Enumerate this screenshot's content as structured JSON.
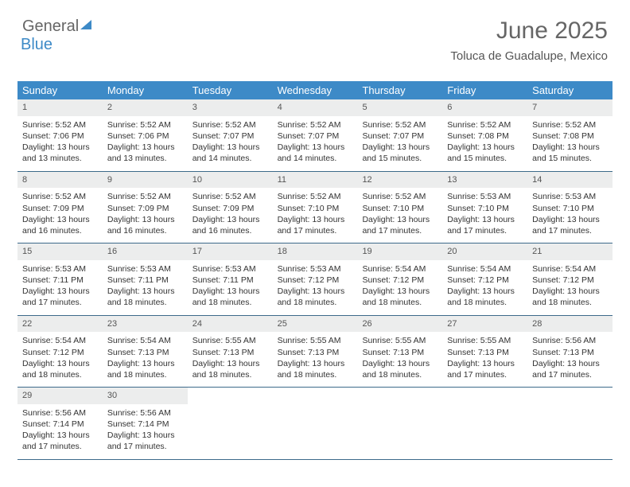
{
  "logo": {
    "general": "General",
    "blue": "Blue"
  },
  "title": "June 2025",
  "location": "Toluca de Guadalupe, Mexico",
  "colors": {
    "header_bg": "#3d8ac7",
    "header_fg": "#ffffff",
    "daynum_bg": "#eceded",
    "rule": "#3d6a8a",
    "text": "#333333",
    "title": "#666666"
  },
  "day_headers": [
    "Sunday",
    "Monday",
    "Tuesday",
    "Wednesday",
    "Thursday",
    "Friday",
    "Saturday"
  ],
  "weeks": [
    [
      {
        "n": "1",
        "sr": "Sunrise: 5:52 AM",
        "ss": "Sunset: 7:06 PM",
        "d1": "Daylight: 13 hours",
        "d2": "and 13 minutes."
      },
      {
        "n": "2",
        "sr": "Sunrise: 5:52 AM",
        "ss": "Sunset: 7:06 PM",
        "d1": "Daylight: 13 hours",
        "d2": "and 13 minutes."
      },
      {
        "n": "3",
        "sr": "Sunrise: 5:52 AM",
        "ss": "Sunset: 7:07 PM",
        "d1": "Daylight: 13 hours",
        "d2": "and 14 minutes."
      },
      {
        "n": "4",
        "sr": "Sunrise: 5:52 AM",
        "ss": "Sunset: 7:07 PM",
        "d1": "Daylight: 13 hours",
        "d2": "and 14 minutes."
      },
      {
        "n": "5",
        "sr": "Sunrise: 5:52 AM",
        "ss": "Sunset: 7:07 PM",
        "d1": "Daylight: 13 hours",
        "d2": "and 15 minutes."
      },
      {
        "n": "6",
        "sr": "Sunrise: 5:52 AM",
        "ss": "Sunset: 7:08 PM",
        "d1": "Daylight: 13 hours",
        "d2": "and 15 minutes."
      },
      {
        "n": "7",
        "sr": "Sunrise: 5:52 AM",
        "ss": "Sunset: 7:08 PM",
        "d1": "Daylight: 13 hours",
        "d2": "and 15 minutes."
      }
    ],
    [
      {
        "n": "8",
        "sr": "Sunrise: 5:52 AM",
        "ss": "Sunset: 7:09 PM",
        "d1": "Daylight: 13 hours",
        "d2": "and 16 minutes."
      },
      {
        "n": "9",
        "sr": "Sunrise: 5:52 AM",
        "ss": "Sunset: 7:09 PM",
        "d1": "Daylight: 13 hours",
        "d2": "and 16 minutes."
      },
      {
        "n": "10",
        "sr": "Sunrise: 5:52 AM",
        "ss": "Sunset: 7:09 PM",
        "d1": "Daylight: 13 hours",
        "d2": "and 16 minutes."
      },
      {
        "n": "11",
        "sr": "Sunrise: 5:52 AM",
        "ss": "Sunset: 7:10 PM",
        "d1": "Daylight: 13 hours",
        "d2": "and 17 minutes."
      },
      {
        "n": "12",
        "sr": "Sunrise: 5:52 AM",
        "ss": "Sunset: 7:10 PM",
        "d1": "Daylight: 13 hours",
        "d2": "and 17 minutes."
      },
      {
        "n": "13",
        "sr": "Sunrise: 5:53 AM",
        "ss": "Sunset: 7:10 PM",
        "d1": "Daylight: 13 hours",
        "d2": "and 17 minutes."
      },
      {
        "n": "14",
        "sr": "Sunrise: 5:53 AM",
        "ss": "Sunset: 7:10 PM",
        "d1": "Daylight: 13 hours",
        "d2": "and 17 minutes."
      }
    ],
    [
      {
        "n": "15",
        "sr": "Sunrise: 5:53 AM",
        "ss": "Sunset: 7:11 PM",
        "d1": "Daylight: 13 hours",
        "d2": "and 17 minutes."
      },
      {
        "n": "16",
        "sr": "Sunrise: 5:53 AM",
        "ss": "Sunset: 7:11 PM",
        "d1": "Daylight: 13 hours",
        "d2": "and 18 minutes."
      },
      {
        "n": "17",
        "sr": "Sunrise: 5:53 AM",
        "ss": "Sunset: 7:11 PM",
        "d1": "Daylight: 13 hours",
        "d2": "and 18 minutes."
      },
      {
        "n": "18",
        "sr": "Sunrise: 5:53 AM",
        "ss": "Sunset: 7:12 PM",
        "d1": "Daylight: 13 hours",
        "d2": "and 18 minutes."
      },
      {
        "n": "19",
        "sr": "Sunrise: 5:54 AM",
        "ss": "Sunset: 7:12 PM",
        "d1": "Daylight: 13 hours",
        "d2": "and 18 minutes."
      },
      {
        "n": "20",
        "sr": "Sunrise: 5:54 AM",
        "ss": "Sunset: 7:12 PM",
        "d1": "Daylight: 13 hours",
        "d2": "and 18 minutes."
      },
      {
        "n": "21",
        "sr": "Sunrise: 5:54 AM",
        "ss": "Sunset: 7:12 PM",
        "d1": "Daylight: 13 hours",
        "d2": "and 18 minutes."
      }
    ],
    [
      {
        "n": "22",
        "sr": "Sunrise: 5:54 AM",
        "ss": "Sunset: 7:12 PM",
        "d1": "Daylight: 13 hours",
        "d2": "and 18 minutes."
      },
      {
        "n": "23",
        "sr": "Sunrise: 5:54 AM",
        "ss": "Sunset: 7:13 PM",
        "d1": "Daylight: 13 hours",
        "d2": "and 18 minutes."
      },
      {
        "n": "24",
        "sr": "Sunrise: 5:55 AM",
        "ss": "Sunset: 7:13 PM",
        "d1": "Daylight: 13 hours",
        "d2": "and 18 minutes."
      },
      {
        "n": "25",
        "sr": "Sunrise: 5:55 AM",
        "ss": "Sunset: 7:13 PM",
        "d1": "Daylight: 13 hours",
        "d2": "and 18 minutes."
      },
      {
        "n": "26",
        "sr": "Sunrise: 5:55 AM",
        "ss": "Sunset: 7:13 PM",
        "d1": "Daylight: 13 hours",
        "d2": "and 18 minutes."
      },
      {
        "n": "27",
        "sr": "Sunrise: 5:55 AM",
        "ss": "Sunset: 7:13 PM",
        "d1": "Daylight: 13 hours",
        "d2": "and 17 minutes."
      },
      {
        "n": "28",
        "sr": "Sunrise: 5:56 AM",
        "ss": "Sunset: 7:13 PM",
        "d1": "Daylight: 13 hours",
        "d2": "and 17 minutes."
      }
    ],
    [
      {
        "n": "29",
        "sr": "Sunrise: 5:56 AM",
        "ss": "Sunset: 7:14 PM",
        "d1": "Daylight: 13 hours",
        "d2": "and 17 minutes."
      },
      {
        "n": "30",
        "sr": "Sunrise: 5:56 AM",
        "ss": "Sunset: 7:14 PM",
        "d1": "Daylight: 13 hours",
        "d2": "and 17 minutes."
      },
      {
        "empty": true
      },
      {
        "empty": true
      },
      {
        "empty": true
      },
      {
        "empty": true
      },
      {
        "empty": true
      }
    ]
  ]
}
